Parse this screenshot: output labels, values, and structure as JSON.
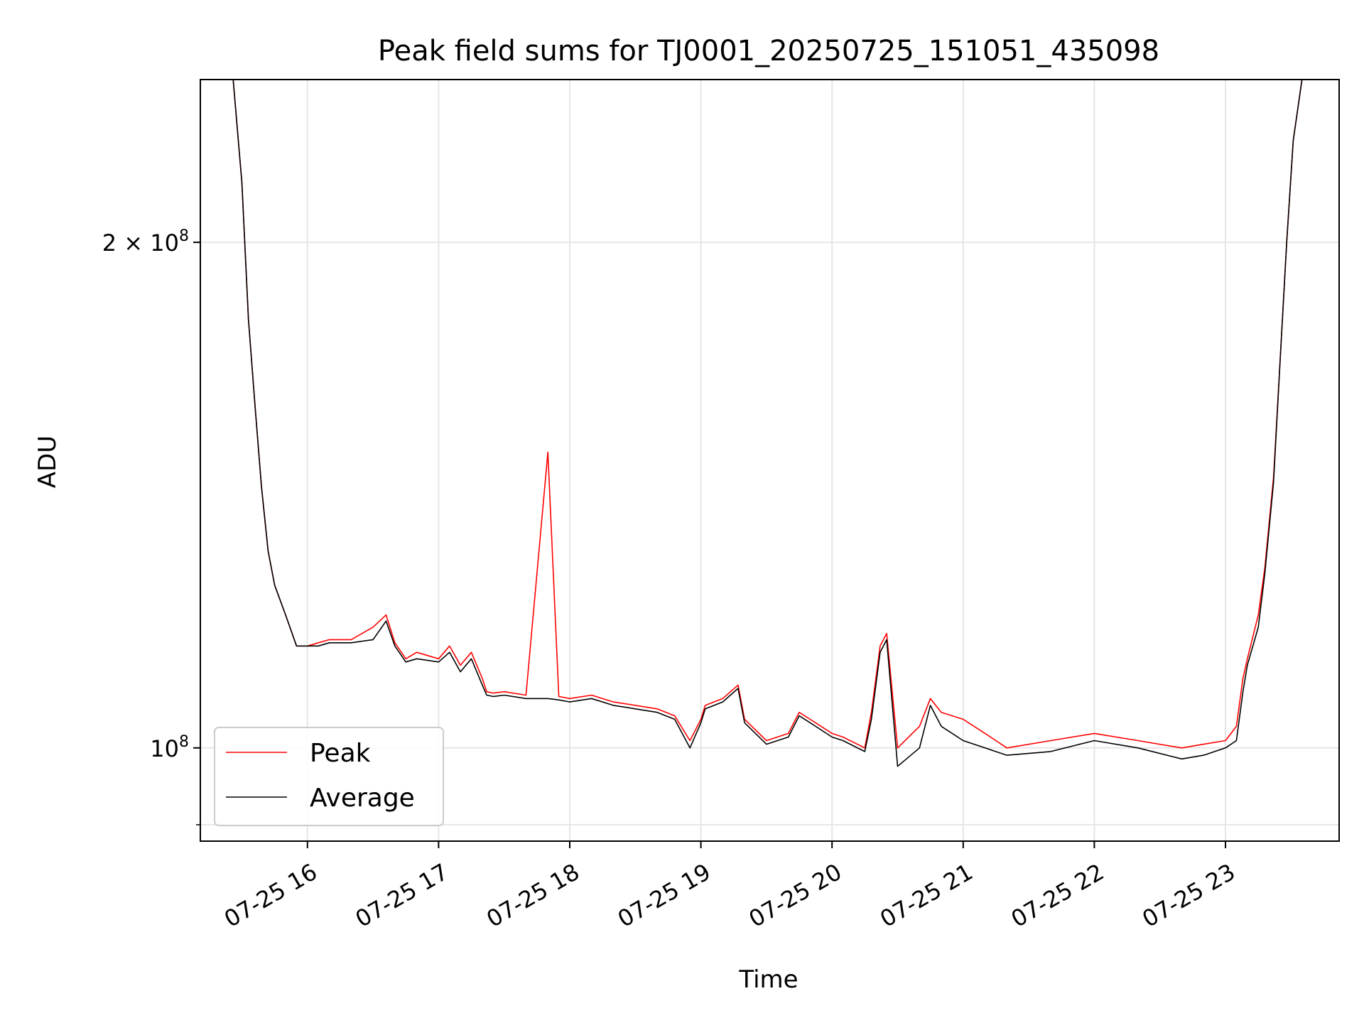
{
  "chart_data": {
    "type": "line",
    "title": "Peak field sums for TJ0001_20250725_151051_435098",
    "xlabel": "Time",
    "ylabel": "ADU",
    "yscale": "log",
    "xlim": [
      "2025-07-25 15:11",
      "2025-07-25 23:52"
    ],
    "ylim": [
      88000000.0,
      250000000.0
    ],
    "grid": true,
    "legend_placement": "lower-left",
    "colors": {
      "Peak": "#ff0000",
      "Average": "#000000"
    },
    "x_ticks": [
      "07-25 16",
      "07-25 17",
      "07-25 18",
      "07-25 19",
      "07-25 20",
      "07-25 21",
      "07-25 22",
      "07-25 23"
    ],
    "y_ticks": [
      {
        "value": 100000000,
        "mantissa": "",
        "exponent": "8"
      },
      {
        "value": 200000000,
        "mantissa": "2",
        "exponent": "8"
      }
    ],
    "x": [
      "2025-07-25 15:26",
      "2025-07-25 15:30",
      "2025-07-25 15:33",
      "2025-07-25 15:36",
      "2025-07-25 15:39",
      "2025-07-25 15:42",
      "2025-07-25 15:45",
      "2025-07-25 15:50",
      "2025-07-25 15:55",
      "2025-07-25 16:00",
      "2025-07-25 16:05",
      "2025-07-25 16:10",
      "2025-07-25 16:20",
      "2025-07-25 16:30",
      "2025-07-25 16:36",
      "2025-07-25 16:40",
      "2025-07-25 16:45",
      "2025-07-25 16:50",
      "2025-07-25 17:00",
      "2025-07-25 17:05",
      "2025-07-25 17:10",
      "2025-07-25 17:15",
      "2025-07-25 17:20",
      "2025-07-25 17:22",
      "2025-07-25 17:25",
      "2025-07-25 17:30",
      "2025-07-25 17:40",
      "2025-07-25 17:50",
      "2025-07-25 17:55",
      "2025-07-25 18:00",
      "2025-07-25 18:10",
      "2025-07-25 18:20",
      "2025-07-25 18:30",
      "2025-07-25 18:40",
      "2025-07-25 18:48",
      "2025-07-25 18:55",
      "2025-07-25 19:00",
      "2025-07-25 19:02",
      "2025-07-25 19:10",
      "2025-07-25 19:17",
      "2025-07-25 19:20",
      "2025-07-25 19:30",
      "2025-07-25 19:40",
      "2025-07-25 19:45",
      "2025-07-25 19:50",
      "2025-07-25 20:00",
      "2025-07-25 20:05",
      "2025-07-25 20:15",
      "2025-07-25 20:18",
      "2025-07-25 20:22",
      "2025-07-25 20:25",
      "2025-07-25 20:30",
      "2025-07-25 20:40",
      "2025-07-25 20:45",
      "2025-07-25 20:50",
      "2025-07-25 21:00",
      "2025-07-25 21:10",
      "2025-07-25 21:20",
      "2025-07-25 21:40",
      "2025-07-25 22:00",
      "2025-07-25 22:20",
      "2025-07-25 22:40",
      "2025-07-25 22:50",
      "2025-07-25 23:00",
      "2025-07-25 23:05",
      "2025-07-25 23:08",
      "2025-07-25 23:10",
      "2025-07-25 23:15",
      "2025-07-25 23:18",
      "2025-07-25 23:22",
      "2025-07-25 23:25",
      "2025-07-25 23:28",
      "2025-07-25 23:31",
      "2025-07-25 23:35"
    ],
    "series": [
      {
        "name": "Peak",
        "values": [
          250000000.0,
          217000000.0,
          180000000.0,
          160000000.0,
          143000000.0,
          131000000.0,
          125000000.0,
          120000000.0,
          115000000.0,
          115000000.0,
          115500000.0,
          116000000.0,
          116000000.0,
          118000000.0,
          120000000.0,
          115500000.0,
          113000000.0,
          114000000.0,
          113000000.0,
          115000000.0,
          112000000.0,
          114000000.0,
          110000000.0,
          108000000.0,
          107800000.0,
          108000000.0,
          107500000.0,
          150000000.0,
          107300000.0,
          107000000.0,
          107500000.0,
          106500000.0,
          106000000.0,
          105500000.0,
          104500000.0,
          101000000.0,
          104000000.0,
          106000000.0,
          107000000.0,
          109000000.0,
          104000000.0,
          101000000.0,
          102000000.0,
          105000000.0,
          104000000.0,
          102000000.0,
          101500000.0,
          100000000.0,
          105000000.0,
          115000000.0,
          117000000.0,
          100000000.0,
          103000000.0,
          107000000.0,
          105000000.0,
          104000000.0,
          102000000.0,
          100000000.0,
          101000000.0,
          102000000.0,
          101000000.0,
          100000000.0,
          100500000.0,
          101000000.0,
          103000000.0,
          110000000.0,
          113000000.0,
          120000000.0,
          128000000.0,
          145000000.0,
          170000000.0,
          200000000.0,
          230000000.0,
          250000000.0
        ]
      },
      {
        "name": "Average",
        "values": [
          250000000.0,
          217000000.0,
          180000000.0,
          160000000.0,
          143000000.0,
          131000000.0,
          125000000.0,
          120000000.0,
          115000000.0,
          115000000.0,
          115000000.0,
          115500000.0,
          115500000.0,
          116000000.0,
          119000000.0,
          115000000.0,
          112500000.0,
          113000000.0,
          112500000.0,
          114000000.0,
          111000000.0,
          113000000.0,
          109000000.0,
          107500000.0,
          107300000.0,
          107500000.0,
          107000000.0,
          107000000.0,
          106800000.0,
          106500000.0,
          107000000.0,
          106000000.0,
          105500000.0,
          105000000.0,
          104000000.0,
          100000000.0,
          103500000.0,
          105500000.0,
          106500000.0,
          108500000.0,
          103500000.0,
          100500000.0,
          101500000.0,
          104500000.0,
          103500000.0,
          101500000.0,
          101000000.0,
          99500000.0,
          104000000.0,
          114000000.0,
          116000000.0,
          97500000.0,
          100000000.0,
          106000000.0,
          103000000.0,
          101000000.0,
          100000000.0,
          99000000.0,
          99500000.0,
          101000000.0,
          100000000.0,
          98500000.0,
          99000000.0,
          100000000.0,
          101000000.0,
          108000000.0,
          112000000.0,
          118000000.0,
          127000000.0,
          144000000.0,
          170000000.0,
          200000000.0,
          230000000.0,
          250000000.0
        ]
      }
    ]
  }
}
